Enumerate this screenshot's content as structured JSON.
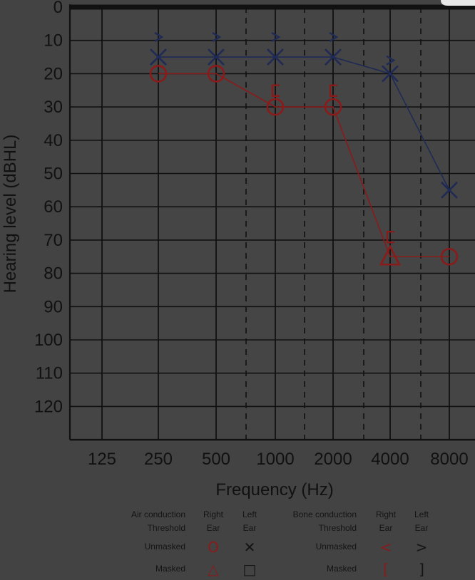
{
  "chart_data": {
    "type": "line",
    "xlabel": "Frequency (Hz)",
    "ylabel": "Hearing level (dBHL)",
    "categories": [
      "125",
      "250",
      "500",
      "1000",
      "2000",
      "4000",
      "8000"
    ],
    "ylim": [
      0,
      130
    ],
    "yticks": [
      "0",
      "10",
      "20",
      "30",
      "40",
      "50",
      "60",
      "70",
      "80",
      "90",
      "100",
      "110",
      "120"
    ],
    "grid": true,
    "series": [
      {
        "name": "Right ear air conduction",
        "color": "#8b1a1a",
        "points": [
          {
            "x": "250",
            "y": 20,
            "symbol": "circle"
          },
          {
            "x": "500",
            "y": 20,
            "symbol": "circle"
          },
          {
            "x": "1000",
            "y": 30,
            "symbol": "circle"
          },
          {
            "x": "2000",
            "y": 30,
            "symbol": "circle"
          },
          {
            "x": "4000",
            "y": 75,
            "symbol": "triangle"
          },
          {
            "x": "8000",
            "y": 75,
            "symbol": "circle"
          }
        ]
      },
      {
        "name": "Left ear air conduction",
        "color": "#1f2a55",
        "points": [
          {
            "x": "250",
            "y": 15,
            "symbol": "x"
          },
          {
            "x": "500",
            "y": 15,
            "symbol": "x"
          },
          {
            "x": "1000",
            "y": 15,
            "symbol": "x"
          },
          {
            "x": "2000",
            "y": 15,
            "symbol": "x"
          },
          {
            "x": "4000",
            "y": 20,
            "symbol": "x"
          },
          {
            "x": "8000",
            "y": 55,
            "symbol": "x"
          }
        ]
      },
      {
        "name": "Left ear bone conduction unmasked",
        "color": "#1f2a55",
        "points": [
          {
            "x": "250",
            "y": 9,
            "symbol": "gt"
          },
          {
            "x": "500",
            "y": 9,
            "symbol": "gt"
          },
          {
            "x": "1000",
            "y": 9,
            "symbol": "gt"
          },
          {
            "x": "2000",
            "y": 9,
            "symbol": "gt"
          },
          {
            "x": "4000",
            "y": 16,
            "symbol": "gt"
          }
        ]
      },
      {
        "name": "Right ear bone conduction masked",
        "color": "#8b1a1a",
        "points": [
          {
            "x": "1000",
            "y": 25,
            "symbol": "bracket"
          },
          {
            "x": "2000",
            "y": 25,
            "symbol": "bracket"
          },
          {
            "x": "4000",
            "y": 69,
            "symbol": "bracket"
          }
        ]
      }
    ]
  },
  "legend": {
    "air_title_1": "Air conduction",
    "air_title_2": "Threshold",
    "bone_title_1": "Bone conduction",
    "bone_title_2": "Threshold",
    "right_1": "Right",
    "right_2": "Ear",
    "left_1": "Left",
    "left_2": "Ear",
    "unmasked": "Unmasked",
    "masked": "Masked",
    "air_right_unmasked_sym": "O",
    "air_left_unmasked_sym": "✕",
    "air_right_masked_sym": "△",
    "air_left_masked_sym": "□",
    "bone_right_unmasked_sym": "<",
    "bone_left_unmasked_sym": ">",
    "bone_right_masked_sym": "[",
    "bone_left_masked_sym": "]",
    "right_color": "#8b1a1a",
    "left_color": "#141414"
  }
}
